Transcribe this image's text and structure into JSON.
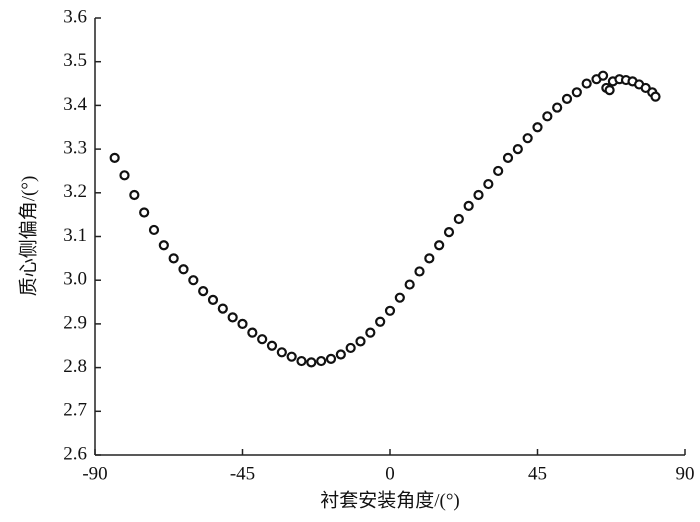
{
  "chart_data": {
    "type": "scatter",
    "xlabel": "衬套安装角度/(°)",
    "ylabel": "质心侧偏角/(°)",
    "x": [
      -84,
      -81,
      -78,
      -75,
      -72,
      -69,
      -66,
      -63,
      -60,
      -57,
      -54,
      -51,
      -48,
      -45,
      -42,
      -39,
      -36,
      -33,
      -30,
      -27,
      -24,
      -21,
      -18,
      -15,
      -12,
      -9,
      -6,
      -3,
      0,
      3,
      6,
      9,
      12,
      15,
      18,
      21,
      24,
      27,
      30,
      33,
      36,
      39,
      42,
      45,
      48,
      51,
      54,
      57,
      60,
      63,
      65,
      66,
      67,
      68,
      70,
      72,
      74,
      76,
      78,
      80,
      81
    ],
    "values": [
      3.28,
      3.24,
      3.195,
      3.155,
      3.115,
      3.08,
      3.05,
      3.025,
      3.0,
      2.975,
      2.955,
      2.935,
      2.915,
      2.9,
      2.88,
      2.865,
      2.85,
      2.835,
      2.825,
      2.815,
      2.812,
      2.815,
      2.82,
      2.83,
      2.845,
      2.86,
      2.88,
      2.905,
      2.93,
      2.96,
      2.99,
      3.02,
      3.05,
      3.08,
      3.11,
      3.14,
      3.17,
      3.195,
      3.22,
      3.25,
      3.28,
      3.3,
      3.325,
      3.35,
      3.375,
      3.395,
      3.415,
      3.43,
      3.45,
      3.46,
      3.468,
      3.44,
      3.435,
      3.455,
      3.46,
      3.458,
      3.455,
      3.448,
      3.44,
      3.43,
      3.42
    ],
    "color": "#111111",
    "xlim": [
      -90,
      90
    ],
    "xticks": [
      -90,
      -45,
      0,
      45,
      90
    ],
    "ylim": [
      2.6,
      3.6
    ],
    "yticks": [
      2.6,
      2.7,
      2.8,
      2.9,
      {
        "value": 3,
        "label": "3.0"
      },
      3.1,
      3.2,
      3.3,
      3.4,
      3.5,
      3.6
    ]
  }
}
